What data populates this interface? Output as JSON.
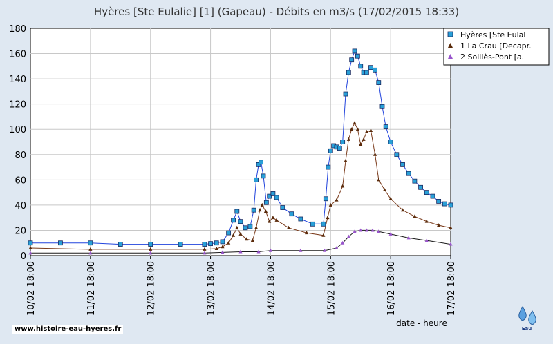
{
  "chart_data": {
    "type": "line",
    "title": "Hyères [Ste Eulalie] [1] (Gapeau) - Débits en m3/s (17/02/2015 18:33)",
    "xlabel": "date - heure",
    "ylabel": "",
    "ylim": [
      0,
      180
    ],
    "yticks": [
      0,
      20,
      40,
      60,
      80,
      100,
      120,
      140,
      160,
      180
    ],
    "xlim": [
      0,
      7
    ],
    "xticks": [
      0,
      1,
      2,
      3,
      4,
      5,
      6,
      7
    ],
    "xtick_labels": [
      "10/02 18:00",
      "11/02 18:00",
      "12/02 18:00",
      "13/02 18:00",
      "14/02 18:00",
      "15/02 18:00",
      "16/02 18:00",
      "17/02 18:00"
    ],
    "grid": true,
    "legend_position": "top-right",
    "series": [
      {
        "name": "Hyères [Ste Eulal",
        "color": "#2244dd",
        "marker_color": "#29a0d8",
        "marker": "square",
        "x": [
          0,
          0.5,
          1,
          1.5,
          2,
          2.5,
          2.9,
          3.0,
          3.1,
          3.2,
          3.3,
          3.38,
          3.44,
          3.5,
          3.58,
          3.66,
          3.72,
          3.76,
          3.8,
          3.84,
          3.88,
          3.93,
          3.98,
          4.04,
          4.1,
          4.2,
          4.35,
          4.5,
          4.7,
          4.88,
          4.92,
          4.96,
          5.0,
          5.05,
          5.1,
          5.15,
          5.2,
          5.25,
          5.3,
          5.35,
          5.4,
          5.45,
          5.5,
          5.55,
          5.6,
          5.67,
          5.74,
          5.8,
          5.86,
          5.92,
          6.0,
          6.1,
          6.2,
          6.3,
          6.4,
          6.5,
          6.6,
          6.7,
          6.8,
          6.9,
          7.0
        ],
        "y": [
          10,
          10,
          10,
          9,
          9,
          9,
          9,
          9.5,
          10,
          11,
          18,
          28,
          35,
          27,
          22,
          23,
          36,
          60,
          72,
          74,
          63,
          42,
          47,
          49,
          46,
          38,
          33,
          29,
          25,
          25,
          45,
          70,
          83,
          87,
          86,
          85,
          90,
          128,
          145,
          155,
          162,
          158,
          150,
          145,
          145,
          149,
          147,
          137,
          118,
          102,
          90,
          80,
          72,
          65,
          59,
          54,
          50,
          47,
          43,
          41,
          40
        ]
      },
      {
        "name": "1 La Crau [Decapr.",
        "color": "#7a3a1a",
        "marker_color": "#5a2a0a",
        "marker": "triangle",
        "x": [
          0,
          1,
          2,
          2.9,
          3.1,
          3.2,
          3.3,
          3.38,
          3.44,
          3.5,
          3.6,
          3.7,
          3.76,
          3.82,
          3.86,
          3.92,
          3.98,
          4.04,
          4.1,
          4.3,
          4.6,
          4.88,
          4.95,
          5.0,
          5.1,
          5.2,
          5.25,
          5.3,
          5.35,
          5.4,
          5.45,
          5.5,
          5.55,
          5.6,
          5.67,
          5.74,
          5.8,
          5.9,
          6.0,
          6.2,
          6.4,
          6.6,
          6.8,
          7.0
        ],
        "y": [
          6,
          5,
          5,
          5,
          5.5,
          7,
          10,
          16,
          22,
          17,
          13,
          12,
          22,
          36,
          40,
          35,
          27,
          30,
          28,
          22,
          18,
          16,
          30,
          40,
          44,
          55,
          75,
          92,
          100,
          105,
          100,
          88,
          92,
          98,
          99,
          80,
          60,
          52,
          45,
          36,
          31,
          27,
          24,
          22
        ]
      },
      {
        "name": "2 Solliès-Pont [a.",
        "color": "#1a1a1a",
        "marker_color": "#9955cc",
        "marker": "triangle",
        "x": [
          0,
          1,
          2,
          2.9,
          3.2,
          3.5,
          3.8,
          4.0,
          4.5,
          4.9,
          5.1,
          5.2,
          5.3,
          5.4,
          5.5,
          5.6,
          5.7,
          5.8,
          6.0,
          6.3,
          6.6,
          7.0
        ],
        "y": [
          2,
          2,
          2,
          2,
          2.5,
          3,
          3,
          4,
          4,
          4,
          6,
          10,
          15,
          19,
          20,
          20,
          20,
          19,
          17,
          14,
          12,
          9
        ]
      }
    ]
  },
  "footer": {
    "credit": "www.histoire-eau-hyeres.fr",
    "logo_text": "Eau"
  }
}
